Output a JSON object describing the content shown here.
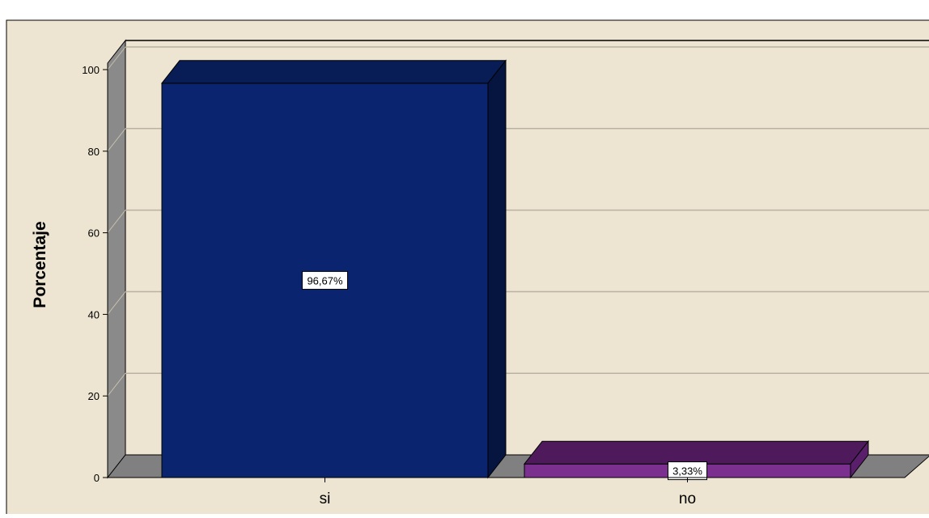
{
  "chart_data": {
    "type": "bar",
    "style": "3d",
    "categories": [
      "si",
      "no"
    ],
    "values": [
      96.67,
      3.33
    ],
    "data_labels": [
      "96,67%",
      "3,33%"
    ],
    "ylabel": "Porcentaje",
    "xlabel": "",
    "ylim": [
      0,
      100
    ],
    "yticks": [
      0,
      20,
      40,
      60,
      80,
      100
    ],
    "grid": true,
    "legend": "none"
  },
  "colors": {
    "background": "#ede5d1",
    "floor": "#808080",
    "wall_side": "#8a8a8a",
    "gridline": "#b9b2a3",
    "bar_si_front": "#0a2470",
    "bar_si_top": "#081c55",
    "bar_si_side": "#06153f",
    "bar_no_front": "#7b2f8f",
    "bar_no_top": "#4e1a5c",
    "bar_no_side": "#5a1f6b",
    "label_box": "#ffffff"
  }
}
